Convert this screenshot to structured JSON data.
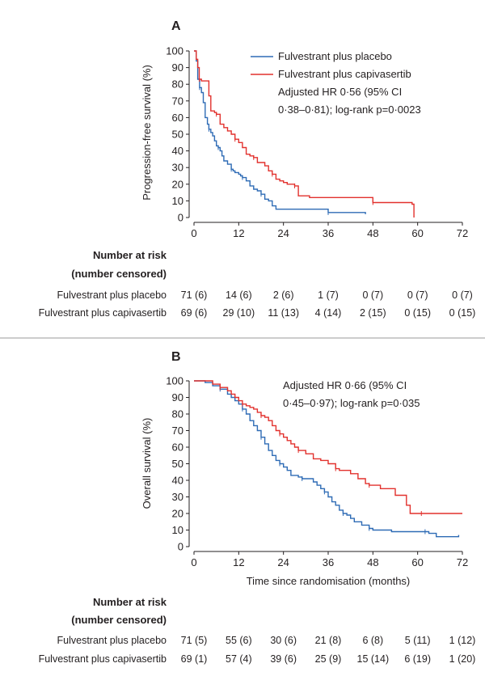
{
  "colors": {
    "placebo": "#2e6bb5",
    "capivasertib": "#e2312d"
  },
  "chart_data": [
    {
      "type": "line",
      "panel": "A",
      "ylabel": "Progression-free survival (%)",
      "xlabel": "",
      "xlim": [
        0,
        72
      ],
      "ylim": [
        0,
        100
      ],
      "xticks": [
        "0",
        "12",
        "24",
        "36",
        "48",
        "60",
        "72"
      ],
      "yticks": [
        "0",
        "10",
        "20",
        "30",
        "40",
        "50",
        "60",
        "70",
        "80",
        "90",
        "100"
      ],
      "legend": [
        "Fulvestrant plus placebo",
        "Fulvestrant plus capivasertib"
      ],
      "annotation": [
        "Adjusted HR 0·56 (95% CI",
        "0·38–0·81); log-rank p=0·0023"
      ],
      "series": [
        {
          "name": "Fulvestrant plus placebo",
          "x": [
            0,
            0.6,
            1,
            1.5,
            2,
            2.5,
            3,
            3.6,
            4,
            4.5,
            5,
            5.5,
            6,
            6.5,
            7,
            7.5,
            8,
            9,
            10,
            10.5,
            11,
            12,
            12.5,
            13,
            14,
            15,
            16,
            17,
            18,
            19,
            20,
            21,
            22,
            36,
            46
          ],
          "y": [
            100,
            94,
            83,
            78,
            75,
            69,
            60,
            56,
            53,
            51,
            49,
            46,
            43,
            42,
            40,
            37,
            34,
            32,
            29,
            28,
            27,
            26,
            25,
            24,
            22,
            19,
            17,
            16,
            14,
            11,
            10,
            7,
            5,
            3,
            2
          ]
        },
        {
          "name": "Fulvestrant plus capivasertib",
          "x": [
            0,
            0.6,
            1,
            1.4,
            2,
            4,
            4.5,
            5.5,
            6,
            7,
            8,
            9,
            10,
            11,
            12,
            13,
            14,
            15,
            16,
            17,
            18,
            19,
            20,
            21,
            22,
            23,
            24,
            25,
            27,
            28,
            31,
            32,
            36,
            48,
            58.5,
            59
          ],
          "y": [
            100,
            95,
            90,
            83,
            82,
            73,
            64,
            63,
            62,
            56,
            54,
            52,
            50,
            47,
            45,
            42,
            38,
            37,
            36,
            33,
            33,
            31,
            28,
            26,
            23,
            22,
            21,
            20,
            19,
            13,
            12,
            12,
            12,
            9,
            8,
            0
          ]
        }
      ],
      "risk_table": {
        "header": [
          "Number at risk",
          "(number censored)"
        ],
        "rows": [
          {
            "label": "Fulvestrant plus placebo",
            "cells": [
              "71 (6)",
              "14 (6)",
              "2 (6)",
              "1 (7)",
              "0 (7)",
              "0 (7)",
              "0 (7)"
            ]
          },
          {
            "label": "Fulvestrant plus capivasertib",
            "cells": [
              "69 (6)",
              "29 (10)",
              "11 (13)",
              "4 (14)",
              "2 (15)",
              "0 (15)",
              "0 (15)"
            ]
          }
        ]
      }
    },
    {
      "type": "line",
      "panel": "B",
      "ylabel": "Overall survival (%)",
      "xlabel": "Time since randomisation (months)",
      "xlim": [
        0,
        72
      ],
      "ylim": [
        0,
        100
      ],
      "xticks": [
        "0",
        "12",
        "24",
        "36",
        "48",
        "60",
        "72"
      ],
      "yticks": [
        "0",
        "10",
        "20",
        "30",
        "40",
        "50",
        "60",
        "70",
        "80",
        "90",
        "100"
      ],
      "annotation": [
        "Adjusted HR 0·66 (95% CI",
        "0·45–0·97); log-rank p=0·035"
      ],
      "series": [
        {
          "name": "Fulvestrant plus placebo",
          "x": [
            0,
            3,
            5,
            7,
            9,
            10,
            11,
            12,
            13,
            14,
            15,
            16,
            17,
            18,
            19,
            20,
            21,
            22,
            23,
            24,
            25,
            26,
            28,
            29,
            30,
            32,
            33,
            34,
            35,
            36,
            37,
            38,
            39,
            40,
            41,
            42,
            43,
            45,
            47,
            48,
            50,
            53,
            57,
            62,
            63,
            65,
            70,
            71
          ],
          "y": [
            100,
            99,
            97,
            95,
            92,
            90,
            88,
            86,
            83,
            80,
            76,
            73,
            70,
            66,
            62,
            58,
            55,
            52,
            50,
            48,
            46,
            43,
            42,
            41,
            41,
            39,
            37,
            35,
            33,
            30,
            27,
            25,
            22,
            20,
            19,
            17,
            15,
            13,
            11,
            10,
            10,
            9,
            9,
            9,
            8,
            6,
            6,
            7
          ]
        },
        {
          "name": "Fulvestrant plus capivasertib",
          "x": [
            0,
            3,
            5,
            7,
            9,
            10,
            11,
            12,
            13,
            14,
            15,
            16,
            17,
            18,
            19,
            20,
            21,
            22,
            23,
            24,
            25,
            26,
            27,
            28,
            30,
            32,
            34,
            36,
            38,
            39,
            42,
            44,
            46,
            47,
            50,
            54,
            57,
            58,
            61,
            65,
            68,
            72
          ],
          "y": [
            100,
            100,
            98,
            96,
            94,
            92,
            90,
            88,
            86,
            85,
            84,
            83,
            81,
            79,
            78,
            76,
            73,
            70,
            68,
            66,
            64,
            62,
            60,
            58,
            56,
            53,
            52,
            50,
            47,
            46,
            44,
            41,
            38,
            37,
            35,
            31,
            25,
            20,
            20,
            20,
            20,
            20
          ]
        }
      ],
      "risk_table": {
        "header": [
          "Number at risk",
          "(number censored)"
        ],
        "rows": [
          {
            "label": "Fulvestrant plus placebo",
            "cells": [
              "71 (5)",
              "55 (6)",
              "30 (6)",
              "21 (8)",
              "6 (8)",
              "5 (11)",
              "1 (12)"
            ]
          },
          {
            "label": "Fulvestrant plus capivasertib",
            "cells": [
              "69 (1)",
              "57 (4)",
              "39 (6)",
              "25 (9)",
              "15 (14)",
              "6 (19)",
              "1 (20)"
            ]
          }
        ]
      }
    }
  ]
}
